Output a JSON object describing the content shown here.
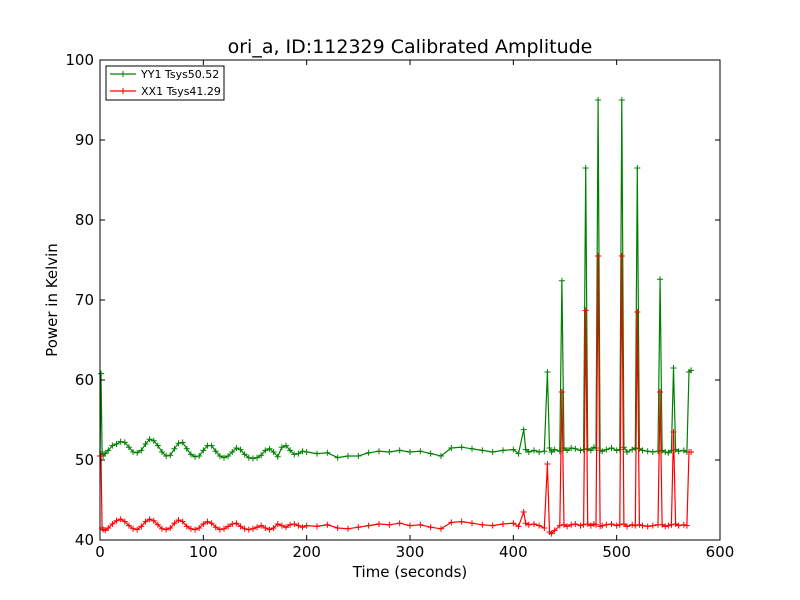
{
  "chart_data": {
    "type": "line",
    "title": "ori_a, ID:112329 Calibrated Amplitude",
    "xlabel": "Time (seconds)",
    "ylabel": "Power in Kelvin",
    "xlim": [
      0,
      600
    ],
    "ylim": [
      40,
      100
    ],
    "xticks": [
      "0",
      "100",
      "200",
      "300",
      "400",
      "500",
      "600"
    ],
    "yticks": [
      "40",
      "50",
      "60",
      "70",
      "80",
      "90",
      "100"
    ],
    "grid": false,
    "legend_position": "top-left",
    "series": [
      {
        "name": "YY1 Tsys50.52",
        "color": "#008000",
        "marker": "plus",
        "x": [
          0,
          1,
          2,
          3,
          5,
          8,
          12,
          16,
          20,
          24,
          28,
          32,
          36,
          40,
          44,
          48,
          52,
          56,
          60,
          64,
          68,
          72,
          76,
          80,
          84,
          88,
          92,
          96,
          100,
          104,
          108,
          112,
          116,
          120,
          124,
          128,
          132,
          136,
          140,
          144,
          148,
          152,
          156,
          160,
          164,
          168,
          172,
          176,
          180,
          184,
          188,
          192,
          196,
          200,
          210,
          220,
          230,
          240,
          250,
          260,
          270,
          280,
          290,
          300,
          310,
          320,
          330,
          340,
          350,
          360,
          370,
          380,
          390,
          400,
          405,
          410,
          412,
          415,
          420,
          425,
          430,
          433,
          435,
          437,
          440,
          445,
          447,
          449,
          452,
          456,
          460,
          465,
          468,
          470,
          472,
          475,
          478,
          480,
          482,
          484,
          486,
          490,
          495,
          500,
          503,
          505,
          507,
          510,
          515,
          518,
          520,
          522,
          525,
          530,
          535,
          540,
          542,
          544,
          547,
          550,
          553,
          555,
          557,
          560,
          565,
          568,
          570,
          572
        ],
        "y": [
          50.5,
          60.8,
          51.0,
          50.5,
          50.8,
          51.2,
          51.8,
          52.0,
          52.3,
          52.2,
          51.6,
          51.0,
          50.9,
          51.2,
          52.0,
          52.6,
          52.4,
          51.8,
          51.0,
          50.5,
          50.6,
          51.4,
          52.1,
          52.2,
          51.4,
          50.7,
          50.4,
          50.5,
          51.2,
          51.8,
          51.8,
          51.1,
          50.5,
          50.3,
          50.5,
          51.0,
          51.5,
          51.3,
          50.7,
          50.3,
          50.2,
          50.3,
          50.6,
          51.2,
          51.4,
          51.0,
          50.4,
          51.6,
          51.8,
          51.2,
          50.7,
          50.8,
          51.1,
          51.0,
          50.8,
          50.9,
          50.3,
          50.5,
          50.5,
          50.9,
          51.1,
          51.0,
          51.2,
          51.0,
          51.1,
          50.8,
          50.5,
          51.5,
          51.6,
          51.4,
          51.2,
          51.0,
          51.2,
          51.3,
          50.8,
          53.8,
          51.3,
          51.0,
          51.2,
          51.0,
          51.1,
          61.0,
          51.5,
          51.0,
          51.3,
          51.1,
          72.4,
          51.5,
          51.2,
          51.5,
          51.4,
          51.2,
          51.3,
          86.5,
          51.4,
          51.2,
          51.6,
          51.5,
          95.0,
          51.2,
          51.1,
          51.3,
          51.5,
          51.2,
          51.3,
          95.0,
          51.6,
          51.0,
          51.3,
          51.5,
          86.5,
          51.4,
          51.2,
          51.1,
          51.0,
          51.1,
          72.6,
          51.2,
          51.0,
          50.9,
          51.2,
          61.5,
          51.3,
          51.1,
          51.2,
          51.0,
          61.0,
          61.2
        ]
      },
      {
        "name": "XX1 Tsys41.29",
        "color": "#ff0000",
        "marker": "plus",
        "x": [
          0,
          1,
          2,
          3,
          5,
          8,
          12,
          16,
          20,
          24,
          28,
          32,
          36,
          40,
          44,
          48,
          52,
          56,
          60,
          64,
          68,
          72,
          76,
          80,
          84,
          88,
          92,
          96,
          100,
          104,
          108,
          112,
          116,
          120,
          124,
          128,
          132,
          136,
          140,
          144,
          148,
          152,
          156,
          160,
          164,
          168,
          172,
          176,
          180,
          184,
          188,
          192,
          196,
          200,
          210,
          220,
          230,
          240,
          250,
          260,
          270,
          280,
          290,
          300,
          310,
          320,
          330,
          340,
          350,
          360,
          370,
          380,
          390,
          400,
          405,
          410,
          412,
          415,
          420,
          425,
          430,
          433,
          435,
          437,
          440,
          445,
          447,
          449,
          452,
          456,
          460,
          465,
          468,
          470,
          472,
          475,
          478,
          480,
          482,
          484,
          486,
          490,
          495,
          500,
          503,
          505,
          507,
          510,
          515,
          518,
          520,
          522,
          525,
          530,
          535,
          540,
          542,
          544,
          547,
          550,
          553,
          555,
          557,
          560,
          565,
          568,
          570,
          572
        ],
        "y": [
          50.5,
          50.5,
          41.5,
          41.3,
          41.2,
          41.5,
          42.0,
          42.4,
          42.6,
          42.3,
          41.8,
          41.4,
          41.3,
          41.7,
          42.3,
          42.6,
          42.4,
          41.9,
          41.4,
          41.3,
          41.5,
          42.1,
          42.5,
          42.3,
          41.7,
          41.4,
          41.3,
          41.5,
          42.0,
          42.3,
          42.1,
          41.6,
          41.3,
          41.4,
          41.7,
          42.0,
          42.1,
          41.7,
          41.4,
          41.3,
          41.4,
          41.6,
          41.8,
          41.5,
          41.3,
          41.5,
          42.0,
          41.8,
          41.6,
          41.9,
          42.0,
          41.8,
          41.6,
          41.8,
          41.7,
          41.9,
          41.5,
          41.4,
          41.6,
          41.8,
          42.0,
          41.9,
          42.1,
          41.8,
          41.9,
          41.6,
          41.4,
          42.2,
          42.3,
          42.1,
          41.9,
          41.8,
          42.0,
          42.1,
          41.7,
          43.5,
          42.1,
          41.9,
          42.0,
          41.8,
          41.5,
          49.5,
          41.0,
          40.8,
          41.2,
          41.8,
          58.5,
          41.9,
          41.7,
          41.9,
          42.0,
          41.8,
          41.9,
          68.7,
          42.0,
          41.8,
          42.0,
          41.9,
          75.5,
          41.7,
          41.8,
          41.9,
          42.0,
          41.8,
          41.9,
          75.5,
          42.0,
          41.7,
          41.9,
          41.8,
          68.5,
          41.9,
          41.8,
          41.7,
          41.8,
          41.9,
          58.5,
          41.9,
          41.7,
          41.8,
          41.9,
          53.5,
          42.0,
          41.8,
          41.9,
          41.8,
          51.0,
          51.0
        ]
      }
    ]
  }
}
